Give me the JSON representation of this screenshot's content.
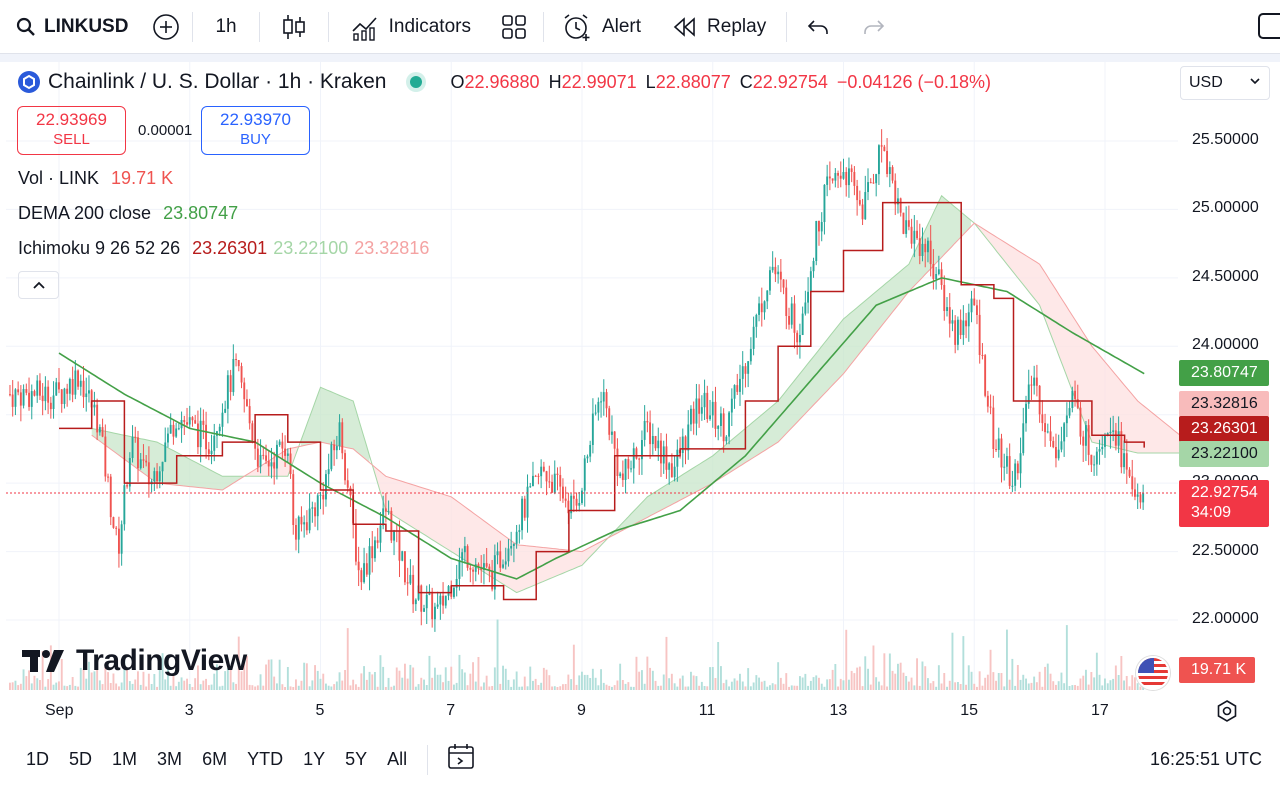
{
  "toolbar": {
    "symbol": "LINKUSD",
    "interval": "1h",
    "indicators_label": "Indicators",
    "alert_label": "Alert",
    "replay_label": "Replay"
  },
  "header": {
    "title": "Chainlink / U. S. Dollar · 1h · Kraken",
    "ohlc": {
      "o_label": "O",
      "o": "22.96880",
      "h_label": "H",
      "h": "22.99071",
      "l_label": "L",
      "l": "22.88077",
      "c_label": "C",
      "c": "22.92754",
      "change": "−0.04126 (−0.18%)"
    },
    "currency": "USD"
  },
  "trade": {
    "sell_price": "22.93969",
    "sell_label": "SELL",
    "spread": "0.00001",
    "buy_price": "22.93970",
    "buy_label": "BUY"
  },
  "indicators": {
    "vol_label": "Vol · LINK",
    "vol_value": "19.71 K",
    "dema_label": "DEMA 200 close",
    "dema_value": "23.80747",
    "ichimoku_label": "Ichimoku 9 26 52 26",
    "ichi_v1": "23.26301",
    "ichi_v2": "23.22100",
    "ichi_v3": "23.32816"
  },
  "badges": {
    "dema": "23.80747",
    "span_b": "23.32816",
    "conversion": "23.26301",
    "span_a": "23.22100",
    "price": "22.92754",
    "countdown": "34:09",
    "volume": "19.71 K"
  },
  "colors": {
    "up": "#26a69a",
    "down": "#ef5350",
    "dema": "#43a047",
    "conversion": "#b71c1c",
    "cloud_up": "#a5d6a7",
    "cloud_down": "#f8bbbb",
    "price_badge": "#f23645",
    "blue": "#2962ff"
  },
  "brand": "TradingView",
  "bottom": {
    "ranges": [
      "1D",
      "5D",
      "1M",
      "3M",
      "6M",
      "YTD",
      "1Y",
      "5Y",
      "All"
    ],
    "time": "16:25:51 UTC"
  },
  "chart_data": {
    "type": "candlestick",
    "title": "Chainlink / U. S. Dollar · 1h · Kraken",
    "y_ticks": [
      "25.50000",
      "25.00000",
      "24.50000",
      "24.00000",
      "23.50000",
      "23.00000",
      "22.50000",
      "22.00000"
    ],
    "ylim": [
      21.8,
      25.7
    ],
    "x_ticks": [
      "Sep",
      "3",
      "5",
      "7",
      "9",
      "11",
      "13",
      "15",
      "17"
    ],
    "price_path": [
      {
        "day": 1.0,
        "price": 23.65
      },
      {
        "day": 1.3,
        "price": 23.8
      },
      {
        "day": 1.6,
        "price": 23.45
      },
      {
        "day": 1.9,
        "price": 22.5
      },
      {
        "day": 2.1,
        "price": 23.3
      },
      {
        "day": 2.4,
        "price": 23.0
      },
      {
        "day": 2.8,
        "price": 23.5
      },
      {
        "day": 3.3,
        "price": 23.3
      },
      {
        "day": 3.7,
        "price": 23.85
      },
      {
        "day": 4.1,
        "price": 23.1
      },
      {
        "day": 4.5,
        "price": 23.3
      },
      {
        "day": 4.6,
        "price": 22.6
      },
      {
        "day": 5.0,
        "price": 22.9
      },
      {
        "day": 5.3,
        "price": 23.4
      },
      {
        "day": 5.6,
        "price": 22.3
      },
      {
        "day": 6.0,
        "price": 22.8
      },
      {
        "day": 6.4,
        "price": 22.2
      },
      {
        "day": 6.8,
        "price": 22.05
      },
      {
        "day": 7.2,
        "price": 22.5
      },
      {
        "day": 7.6,
        "price": 22.3
      },
      {
        "day": 8.0,
        "price": 22.7
      },
      {
        "day": 8.4,
        "price": 23.1
      },
      {
        "day": 8.9,
        "price": 22.8
      },
      {
        "day": 9.3,
        "price": 23.7
      },
      {
        "day": 9.6,
        "price": 23.0
      },
      {
        "day": 10.0,
        "price": 23.4
      },
      {
        "day": 10.4,
        "price": 23.1
      },
      {
        "day": 10.8,
        "price": 23.6
      },
      {
        "day": 11.2,
        "price": 23.4
      },
      {
        "day": 11.5,
        "price": 23.9
      },
      {
        "day": 11.9,
        "price": 24.6
      },
      {
        "day": 12.3,
        "price": 24.1
      },
      {
        "day": 12.7,
        "price": 25.1
      },
      {
        "day": 13.0,
        "price": 25.3
      },
      {
        "day": 13.3,
        "price": 25.0
      },
      {
        "day": 13.6,
        "price": 25.5
      },
      {
        "day": 13.9,
        "price": 24.9
      },
      {
        "day": 14.3,
        "price": 24.7
      },
      {
        "day": 14.7,
        "price": 24.1
      },
      {
        "day": 15.0,
        "price": 24.3
      },
      {
        "day": 15.3,
        "price": 23.3
      },
      {
        "day": 15.6,
        "price": 23.0
      },
      {
        "day": 15.9,
        "price": 23.8
      },
      {
        "day": 16.2,
        "price": 23.2
      },
      {
        "day": 16.5,
        "price": 23.6
      },
      {
        "day": 16.8,
        "price": 23.2
      },
      {
        "day": 17.1,
        "price": 23.5
      },
      {
        "day": 17.4,
        "price": 22.95
      },
      {
        "day": 17.6,
        "price": 22.93
      }
    ],
    "dema_200": [
      {
        "day": 1.0,
        "price": 23.95
      },
      {
        "day": 2.0,
        "price": 23.65
      },
      {
        "day": 3.0,
        "price": 23.4
      },
      {
        "day": 4.0,
        "price": 23.3
      },
      {
        "day": 5.0,
        "price": 23.0
      },
      {
        "day": 6.0,
        "price": 22.75
      },
      {
        "day": 7.0,
        "price": 22.45
      },
      {
        "day": 8.0,
        "price": 22.3
      },
      {
        "day": 8.6,
        "price": 22.45
      },
      {
        "day": 9.5,
        "price": 22.65
      },
      {
        "day": 10.5,
        "price": 22.8
      },
      {
        "day": 11.5,
        "price": 23.2
      },
      {
        "day": 12.5,
        "price": 23.75
      },
      {
        "day": 13.5,
        "price": 24.3
      },
      {
        "day": 14.5,
        "price": 24.5
      },
      {
        "day": 15.5,
        "price": 24.4
      },
      {
        "day": 16.5,
        "price": 24.1
      },
      {
        "day": 17.6,
        "price": 23.8
      }
    ],
    "conversion_line": [
      {
        "day": 1.0,
        "price": 23.4
      },
      {
        "day": 1.5,
        "price": 23.6
      },
      {
        "day": 2.0,
        "price": 23.0
      },
      {
        "day": 2.8,
        "price": 23.2
      },
      {
        "day": 3.5,
        "price": 23.3
      },
      {
        "day": 4.0,
        "price": 23.5
      },
      {
        "day": 4.5,
        "price": 23.3
      },
      {
        "day": 5.0,
        "price": 22.95
      },
      {
        "day": 5.5,
        "price": 22.7
      },
      {
        "day": 6.0,
        "price": 22.65
      },
      {
        "day": 6.5,
        "price": 22.2
      },
      {
        "day": 7.0,
        "price": 22.25
      },
      {
        "day": 7.8,
        "price": 22.15
      },
      {
        "day": 8.3,
        "price": 22.5
      },
      {
        "day": 8.8,
        "price": 22.8
      },
      {
        "day": 9.5,
        "price": 23.2
      },
      {
        "day": 10.5,
        "price": 23.25
      },
      {
        "day": 11.5,
        "price": 23.6
      },
      {
        "day": 12.0,
        "price": 24.0
      },
      {
        "day": 12.5,
        "price": 24.4
      },
      {
        "day": 13.0,
        "price": 24.7
      },
      {
        "day": 13.6,
        "price": 25.05
      },
      {
        "day": 14.5,
        "price": 25.05
      },
      {
        "day": 14.8,
        "price": 24.45
      },
      {
        "day": 15.3,
        "price": 24.35
      },
      {
        "day": 15.6,
        "price": 23.6
      },
      {
        "day": 16.3,
        "price": 23.6
      },
      {
        "day": 16.8,
        "price": 23.35
      },
      {
        "day": 17.3,
        "price": 23.3
      },
      {
        "day": 17.6,
        "price": 23.26
      }
    ],
    "span_a": [
      {
        "day": 1.5,
        "price": 23.4
      },
      {
        "day": 2.5,
        "price": 23.3
      },
      {
        "day": 3.5,
        "price": 23.05
      },
      {
        "day": 4.5,
        "price": 23.05
      },
      {
        "day": 5.0,
        "price": 23.7
      },
      {
        "day": 5.5,
        "price": 23.6
      },
      {
        "day": 6.0,
        "price": 22.8
      },
      {
        "day": 7.0,
        "price": 22.5
      },
      {
        "day": 8.0,
        "price": 22.2
      },
      {
        "day": 9.0,
        "price": 22.4
      },
      {
        "day": 10.0,
        "price": 22.9
      },
      {
        "day": 11.0,
        "price": 23.2
      },
      {
        "day": 12.0,
        "price": 23.6
      },
      {
        "day": 13.0,
        "price": 24.2
      },
      {
        "day": 14.0,
        "price": 24.6
      },
      {
        "day": 14.5,
        "price": 25.1
      },
      {
        "day": 15.0,
        "price": 24.9
      },
      {
        "day": 16.0,
        "price": 24.3
      },
      {
        "day": 16.8,
        "price": 23.3
      },
      {
        "day": 17.5,
        "price": 23.22
      },
      {
        "day": 18.2,
        "price": 23.22
      }
    ],
    "span_b": [
      {
        "day": 1.5,
        "price": 23.35
      },
      {
        "day": 2.5,
        "price": 23.0
      },
      {
        "day": 3.5,
        "price": 22.95
      },
      {
        "day": 4.5,
        "price": 23.25
      },
      {
        "day": 5.0,
        "price": 23.3
      },
      {
        "day": 5.5,
        "price": 23.25
      },
      {
        "day": 6.0,
        "price": 23.05
      },
      {
        "day": 7.0,
        "price": 22.9
      },
      {
        "day": 8.0,
        "price": 22.55
      },
      {
        "day": 9.0,
        "price": 22.5
      },
      {
        "day": 10.0,
        "price": 22.75
      },
      {
        "day": 11.0,
        "price": 23.0
      },
      {
        "day": 12.0,
        "price": 23.3
      },
      {
        "day": 13.0,
        "price": 23.8
      },
      {
        "day": 14.0,
        "price": 24.4
      },
      {
        "day": 15.0,
        "price": 24.9
      },
      {
        "day": 16.0,
        "price": 24.6
      },
      {
        "day": 16.8,
        "price": 24.0
      },
      {
        "day": 17.5,
        "price": 23.6
      },
      {
        "day": 18.2,
        "price": 23.33
      }
    ]
  }
}
